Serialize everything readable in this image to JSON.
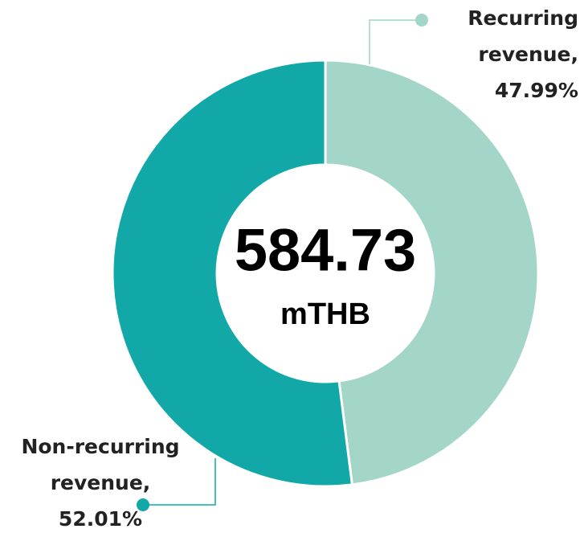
{
  "chart_data": {
    "type": "donut",
    "categories": [
      "Recurring revenue,",
      "Non-recurring revenue,"
    ],
    "values": [
      47.99,
      52.01
    ],
    "value_labels": [
      "47.99%",
      "52.01%"
    ],
    "colors": [
      "#a3d5c9",
      "#12a8a8"
    ],
    "center_value": 584.73,
    "center_unit": "mTHB"
  }
}
